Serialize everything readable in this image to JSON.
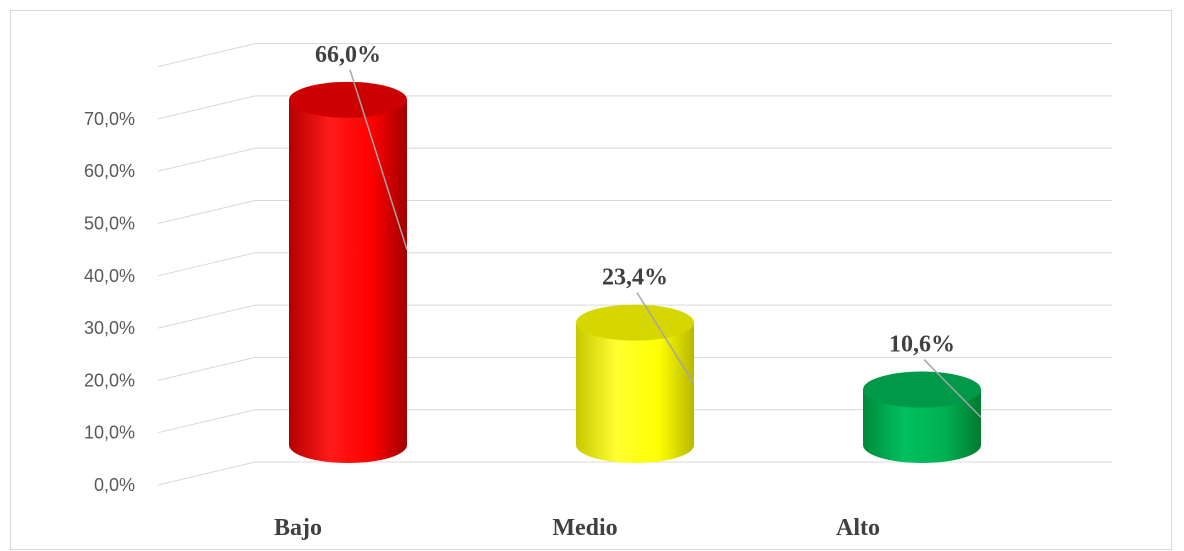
{
  "chart_data": {
    "type": "bar",
    "style": "3d-cylinder",
    "categories": [
      "Bajo",
      "Medio",
      "Alto"
    ],
    "values": [
      66.0,
      23.4,
      10.6
    ],
    "data_labels": [
      "66,0%",
      "23,4%",
      "10,6%"
    ],
    "colors": [
      "#ff0000",
      "#ffff00",
      "#00b050"
    ],
    "y_ticks": [
      "0,0%",
      "10,0%",
      "20,0%",
      "30,0%",
      "40,0%",
      "50,0%",
      "60,0%",
      "70,0%"
    ],
    "ylim": [
      0,
      70
    ],
    "grid": true,
    "legend": "none",
    "title": "",
    "xlabel": "",
    "ylabel": ""
  }
}
